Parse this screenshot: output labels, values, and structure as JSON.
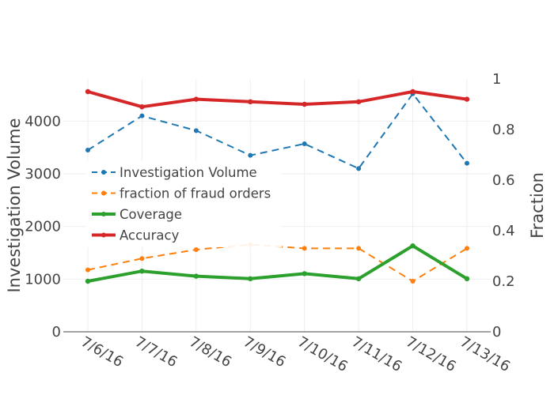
{
  "chart_data": {
    "type": "line",
    "categories": [
      "7/6/16",
      "7/7/16",
      "7/8/16",
      "7/9/16",
      "7/10/16",
      "7/11/16",
      "7/12/16",
      "7/13/16"
    ],
    "y_left": {
      "label": "Investigation Volume",
      "range": [
        0,
        4800
      ],
      "ticks": [
        0,
        1000,
        2000,
        3000,
        4000
      ]
    },
    "y_right": {
      "label": "Fraction",
      "range": [
        0,
        1
      ],
      "ticks": [
        0,
        0.2,
        0.4,
        0.6,
        0.8,
        1
      ],
      "tick_labels": [
        "0",
        "0.2",
        "0.4",
        "0.6",
        "0.8",
        "1"
      ]
    },
    "grid": true,
    "legend_position": "top-left",
    "series": [
      {
        "name": "Investigation Volume",
        "axis": "left",
        "color": "#1f77b4",
        "dash": "dashed",
        "width": 2,
        "values": [
          3450,
          4100,
          3820,
          3350,
          3570,
          3100,
          4520,
          3200
        ]
      },
      {
        "name": "fraction of fraud orders",
        "axis": "right",
        "color": "#ff7f0e",
        "dash": "dashed",
        "width": 2,
        "values": [
          0.245,
          0.29,
          0.325,
          0.345,
          0.33,
          0.33,
          0.2,
          0.33
        ]
      },
      {
        "name": "Coverage",
        "axis": "right",
        "color": "#2ca02c",
        "dash": "solid",
        "width": 4,
        "values": [
          0.2,
          0.24,
          0.22,
          0.21,
          0.23,
          0.21,
          0.34,
          0.21
        ]
      },
      {
        "name": "Accuracy",
        "axis": "right",
        "color": "#d62728",
        "dash": "solid",
        "width": 4,
        "values": [
          0.95,
          0.89,
          0.92,
          0.91,
          0.9,
          0.91,
          0.95,
          0.92
        ]
      }
    ]
  }
}
